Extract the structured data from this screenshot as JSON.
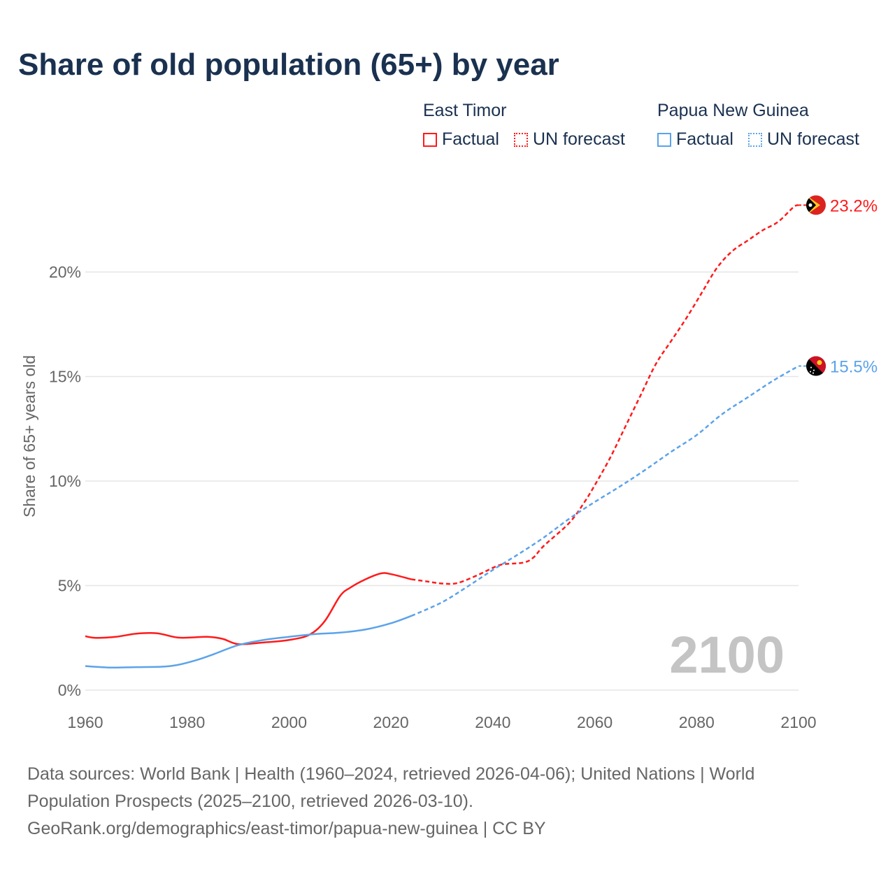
{
  "chart_data": {
    "type": "line",
    "title": "Share of old population (65+) by year",
    "xlabel": "",
    "ylabel": "Share of 65+ years old",
    "xlim": [
      1960,
      2100
    ],
    "ylim": [
      0,
      23.2
    ],
    "x_ticks": [
      "1960",
      "1980",
      "2000",
      "2020",
      "2040",
      "2060",
      "2080",
      "2100"
    ],
    "x_tick_values": [
      1960,
      1980,
      2000,
      2020,
      2040,
      2060,
      2080,
      2100
    ],
    "y_ticks": [
      "0%",
      "5%",
      "10%",
      "15%",
      "20%"
    ],
    "y_tick_values": [
      0,
      5,
      10,
      15,
      20
    ],
    "grid": true,
    "current_year": "2100",
    "series": [
      {
        "name": "East Timor — Factual",
        "color": "#ff1a1a",
        "style": "solid",
        "x": [
          1960,
          1962,
          1966,
          1970,
          1974,
          1978,
          1981,
          1984,
          1987,
          1990,
          1995,
          2000,
          2004,
          2007,
          2010,
          2012,
          2015,
          2018,
          2020,
          2024
        ],
        "y": [
          2.58,
          2.5,
          2.55,
          2.7,
          2.72,
          2.52,
          2.52,
          2.55,
          2.45,
          2.2,
          2.28,
          2.4,
          2.65,
          3.3,
          4.5,
          4.9,
          5.3,
          5.58,
          5.55,
          5.3
        ]
      },
      {
        "name": "East Timor — UN forecast",
        "color": "#ff1a1a",
        "style": "dashed",
        "x": [
          2024,
          2027,
          2030,
          2033,
          2037,
          2040,
          2042,
          2046,
          2048,
          2050,
          2055,
          2058,
          2060,
          2063,
          2066,
          2069,
          2072,
          2075,
          2078,
          2081,
          2084,
          2087,
          2090,
          2093,
          2096,
          2099,
          2100
        ],
        "y": [
          5.3,
          5.2,
          5.1,
          5.12,
          5.5,
          5.85,
          6.02,
          6.1,
          6.35,
          6.9,
          8.0,
          9.0,
          9.8,
          11.1,
          12.6,
          14.1,
          15.6,
          16.7,
          17.8,
          19.0,
          20.2,
          21.0,
          21.5,
          22.0,
          22.4,
          23.1,
          23.2
        ]
      },
      {
        "name": "Papua New Guinea — Factual",
        "color": "#5ba3ea",
        "style": "solid",
        "x": [
          1960,
          1965,
          1970,
          1975,
          1978,
          1982,
          1985,
          1990,
          1995,
          2000,
          2005,
          2010,
          2015,
          2020,
          2024
        ],
        "y": [
          1.15,
          1.08,
          1.1,
          1.12,
          1.2,
          1.45,
          1.7,
          2.15,
          2.4,
          2.55,
          2.68,
          2.75,
          2.9,
          3.2,
          3.55
        ]
      },
      {
        "name": "Papua New Guinea — UN forecast",
        "color": "#5ba3ea",
        "style": "dashed",
        "x": [
          2024,
          2030,
          2035,
          2040,
          2045,
          2050,
          2055,
          2060,
          2065,
          2070,
          2075,
          2080,
          2085,
          2090,
          2095,
          2100
        ],
        "y": [
          3.55,
          4.2,
          4.95,
          5.75,
          6.5,
          7.3,
          8.2,
          9.0,
          9.75,
          10.55,
          11.4,
          12.2,
          13.2,
          14.0,
          14.8,
          15.5
        ]
      }
    ],
    "end_labels": [
      {
        "country": "East Timor",
        "label": "23.2%",
        "value": 23.2,
        "color": "#ff1a1a"
      },
      {
        "country": "Papua New Guinea",
        "label": "15.5%",
        "value": 15.5,
        "color": "#5ba3ea"
      }
    ]
  },
  "legend": {
    "groups": [
      {
        "title": "East Timor",
        "factual": "Factual",
        "forecast": "UN forecast",
        "color": "#ff1a1a"
      },
      {
        "title": "Papua New Guinea",
        "factual": "Factual",
        "forecast": "UN forecast",
        "color": "#5ba3ea"
      }
    ]
  },
  "footer": {
    "sources": "Data sources: World Bank | Health (1960–2024, retrieved 2026-04-06); United Nations | World Population Prospects (2025–2100, retrieved 2026-03-10).",
    "attribution": "GeoRank.org/demographics/east-timor/papua-new-guinea | CC BY"
  }
}
